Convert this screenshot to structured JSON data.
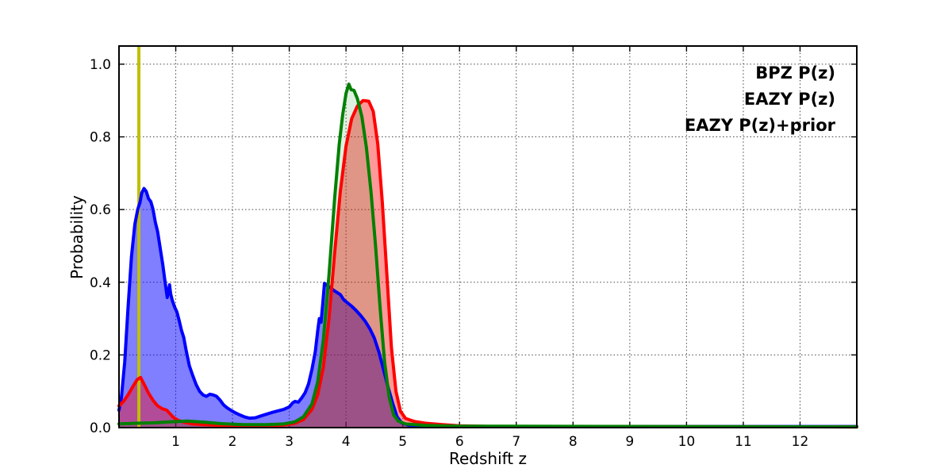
{
  "figure": {
    "xlabel": "Redshift z",
    "ylabel": "Probability",
    "legend": [
      {
        "label": "BPZ P(z)",
        "color": "#0000ff"
      },
      {
        "label": "EAZY P(z)",
        "color": "#ff0000"
      },
      {
        "label": "EAZY P(z)+prior",
        "color": "#008000"
      }
    ]
  },
  "chart_data": {
    "type": "area",
    "title": "",
    "xlabel": "Redshift z",
    "ylabel": "Probability",
    "xlim": [
      0,
      13
    ],
    "ylim": [
      0,
      1.05
    ],
    "xticks": [
      1,
      2,
      3,
      4,
      5,
      6,
      7,
      8,
      9,
      10,
      11,
      12
    ],
    "xticklabels": [
      "1",
      "2",
      "3",
      "4",
      "5",
      "6",
      "7",
      "8",
      "9",
      "10",
      "11",
      "12"
    ],
    "yticks": [
      0.0,
      0.2,
      0.4,
      0.6,
      0.8,
      1.0
    ],
    "yticklabels": [
      "0.0",
      "0.2",
      "0.4",
      "0.6",
      "0.8",
      "1.0"
    ],
    "grid": "dotted",
    "legend_position": "upper right",
    "vline": {
      "x": 0.35,
      "color": "#bfbf00",
      "width": 4
    },
    "series": [
      {
        "name": "BPZ P(z)",
        "color": "#0000ff",
        "fill_opacity": 0.5,
        "line_width": 4,
        "points": [
          [
            0.0,
            0.048
          ],
          [
            0.04,
            0.08
          ],
          [
            0.1,
            0.18
          ],
          [
            0.16,
            0.33
          ],
          [
            0.22,
            0.47
          ],
          [
            0.28,
            0.56
          ],
          [
            0.33,
            0.6
          ],
          [
            0.37,
            0.62
          ],
          [
            0.4,
            0.645
          ],
          [
            0.44,
            0.658
          ],
          [
            0.48,
            0.65
          ],
          [
            0.52,
            0.63
          ],
          [
            0.56,
            0.622
          ],
          [
            0.6,
            0.6
          ],
          [
            0.64,
            0.565
          ],
          [
            0.68,
            0.54
          ],
          [
            0.71,
            0.51
          ],
          [
            0.74,
            0.48
          ],
          [
            0.77,
            0.45
          ],
          [
            0.8,
            0.415
          ],
          [
            0.83,
            0.38
          ],
          [
            0.85,
            0.358
          ],
          [
            0.87,
            0.372
          ],
          [
            0.89,
            0.393
          ],
          [
            0.91,
            0.368
          ],
          [
            0.94,
            0.35
          ],
          [
            0.98,
            0.332
          ],
          [
            1.02,
            0.318
          ],
          [
            1.06,
            0.295
          ],
          [
            1.1,
            0.268
          ],
          [
            1.14,
            0.248
          ],
          [
            1.18,
            0.215
          ],
          [
            1.24,
            0.17
          ],
          [
            1.3,
            0.143
          ],
          [
            1.36,
            0.118
          ],
          [
            1.42,
            0.1
          ],
          [
            1.48,
            0.09
          ],
          [
            1.54,
            0.086
          ],
          [
            1.6,
            0.092
          ],
          [
            1.66,
            0.09
          ],
          [
            1.72,
            0.086
          ],
          [
            1.78,
            0.076
          ],
          [
            1.84,
            0.063
          ],
          [
            1.9,
            0.055
          ],
          [
            1.98,
            0.047
          ],
          [
            2.06,
            0.04
          ],
          [
            2.14,
            0.034
          ],
          [
            2.22,
            0.029
          ],
          [
            2.3,
            0.026
          ],
          [
            2.4,
            0.027
          ],
          [
            2.5,
            0.032
          ],
          [
            2.6,
            0.037
          ],
          [
            2.7,
            0.042
          ],
          [
            2.8,
            0.046
          ],
          [
            2.9,
            0.05
          ],
          [
            3.0,
            0.057
          ],
          [
            3.06,
            0.068
          ],
          [
            3.1,
            0.072
          ],
          [
            3.16,
            0.07
          ],
          [
            3.22,
            0.082
          ],
          [
            3.28,
            0.096
          ],
          [
            3.34,
            0.12
          ],
          [
            3.4,
            0.16
          ],
          [
            3.46,
            0.21
          ],
          [
            3.5,
            0.265
          ],
          [
            3.53,
            0.3
          ],
          [
            3.56,
            0.29
          ],
          [
            3.59,
            0.34
          ],
          [
            3.62,
            0.397
          ],
          [
            3.66,
            0.392
          ],
          [
            3.72,
            0.386
          ],
          [
            3.78,
            0.378
          ],
          [
            3.84,
            0.372
          ],
          [
            3.9,
            0.366
          ],
          [
            3.96,
            0.352
          ],
          [
            4.02,
            0.344
          ],
          [
            4.1,
            0.334
          ],
          [
            4.18,
            0.322
          ],
          [
            4.26,
            0.308
          ],
          [
            4.34,
            0.292
          ],
          [
            4.42,
            0.272
          ],
          [
            4.5,
            0.246
          ],
          [
            4.58,
            0.208
          ],
          [
            4.66,
            0.16
          ],
          [
            4.74,
            0.112
          ],
          [
            4.82,
            0.068
          ],
          [
            4.9,
            0.03
          ],
          [
            4.98,
            0.013
          ],
          [
            5.1,
            0.007
          ],
          [
            5.3,
            0.005
          ],
          [
            5.7,
            0.004
          ],
          [
            6.5,
            0.003
          ],
          [
            13.0,
            0.003
          ]
        ]
      },
      {
        "name": "EAZY P(z)",
        "color": "#ff0000",
        "fill_opacity": 0.4,
        "line_width": 4,
        "points": [
          [
            0.0,
            0.06
          ],
          [
            0.08,
            0.072
          ],
          [
            0.16,
            0.09
          ],
          [
            0.24,
            0.112
          ],
          [
            0.32,
            0.132
          ],
          [
            0.38,
            0.138
          ],
          [
            0.44,
            0.12
          ],
          [
            0.52,
            0.095
          ],
          [
            0.6,
            0.075
          ],
          [
            0.68,
            0.06
          ],
          [
            0.76,
            0.052
          ],
          [
            0.84,
            0.048
          ],
          [
            0.9,
            0.038
          ],
          [
            0.96,
            0.028
          ],
          [
            1.04,
            0.02
          ],
          [
            1.14,
            0.015
          ],
          [
            1.3,
            0.01
          ],
          [
            1.5,
            0.008
          ],
          [
            1.8,
            0.006
          ],
          [
            2.2,
            0.005
          ],
          [
            2.6,
            0.005
          ],
          [
            2.9,
            0.007
          ],
          [
            3.1,
            0.012
          ],
          [
            3.25,
            0.022
          ],
          [
            3.4,
            0.05
          ],
          [
            3.5,
            0.09
          ],
          [
            3.6,
            0.165
          ],
          [
            3.7,
            0.3
          ],
          [
            3.8,
            0.48
          ],
          [
            3.9,
            0.65
          ],
          [
            4.0,
            0.775
          ],
          [
            4.1,
            0.85
          ],
          [
            4.2,
            0.885
          ],
          [
            4.3,
            0.9
          ],
          [
            4.4,
            0.898
          ],
          [
            4.48,
            0.87
          ],
          [
            4.56,
            0.78
          ],
          [
            4.64,
            0.62
          ],
          [
            4.72,
            0.42
          ],
          [
            4.8,
            0.22
          ],
          [
            4.88,
            0.1
          ],
          [
            4.96,
            0.045
          ],
          [
            5.05,
            0.025
          ],
          [
            5.2,
            0.017
          ],
          [
            5.4,
            0.012
          ],
          [
            5.7,
            0.008
          ],
          [
            6.0,
            0.005
          ],
          [
            6.6,
            0.003
          ],
          [
            13.0,
            0.002
          ]
        ]
      },
      {
        "name": "EAZY P(z)+prior",
        "color": "#008000",
        "fill_opacity": 0.12,
        "line_width": 4,
        "points": [
          [
            0.0,
            0.01
          ],
          [
            0.3,
            0.012
          ],
          [
            0.6,
            0.013
          ],
          [
            0.9,
            0.016
          ],
          [
            1.2,
            0.018
          ],
          [
            1.5,
            0.015
          ],
          [
            1.8,
            0.011
          ],
          [
            2.2,
            0.008
          ],
          [
            2.6,
            0.008
          ],
          [
            2.9,
            0.01
          ],
          [
            3.1,
            0.016
          ],
          [
            3.25,
            0.03
          ],
          [
            3.4,
            0.065
          ],
          [
            3.5,
            0.125
          ],
          [
            3.6,
            0.24
          ],
          [
            3.7,
            0.42
          ],
          [
            3.8,
            0.63
          ],
          [
            3.88,
            0.78
          ],
          [
            3.94,
            0.86
          ],
          [
            4.0,
            0.92
          ],
          [
            4.05,
            0.945
          ],
          [
            4.09,
            0.93
          ],
          [
            4.14,
            0.928
          ],
          [
            4.2,
            0.905
          ],
          [
            4.28,
            0.855
          ],
          [
            4.36,
            0.77
          ],
          [
            4.44,
            0.65
          ],
          [
            4.52,
            0.5
          ],
          [
            4.6,
            0.33
          ],
          [
            4.68,
            0.18
          ],
          [
            4.76,
            0.085
          ],
          [
            4.84,
            0.035
          ],
          [
            4.92,
            0.018
          ],
          [
            5.05,
            0.01
          ],
          [
            5.4,
            0.006
          ],
          [
            6.0,
            0.004
          ],
          [
            13.0,
            0.002
          ]
        ]
      }
    ]
  }
}
